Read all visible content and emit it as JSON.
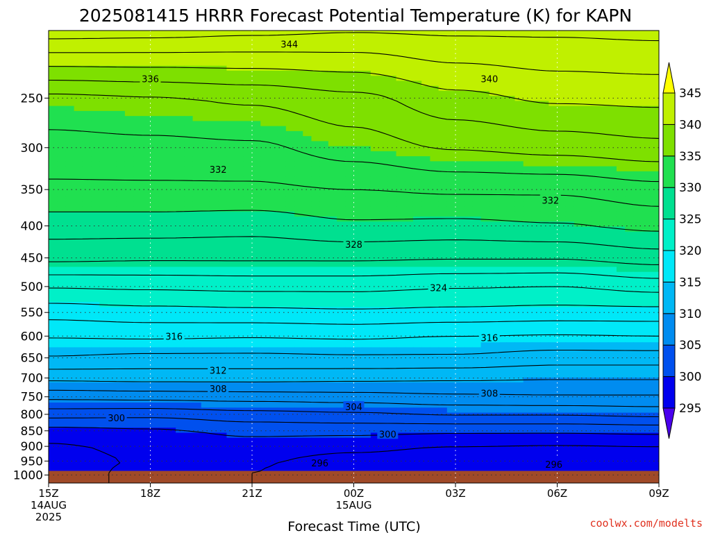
{
  "chart_data": {
    "type": "contour",
    "title": "2025081415 HRRR Forecast Potential Temperature (K) for KAPN",
    "xlabel": "Forecast Time (UTC)",
    "ylabel": "",
    "credit": "coolwx.com/modelts",
    "x_ticks": [
      {
        "value": 0,
        "line1": "15Z",
        "line2": "14AUG",
        "line3": "2025"
      },
      {
        "value": 3,
        "line1": "18Z",
        "line2": "",
        "line3": ""
      },
      {
        "value": 6,
        "line1": "21Z",
        "line2": "",
        "line3": ""
      },
      {
        "value": 9,
        "line1": "00Z",
        "line2": "15AUG",
        "line3": ""
      },
      {
        "value": 12,
        "line1": "03Z",
        "line2": "",
        "line3": ""
      },
      {
        "value": 15,
        "line1": "06Z",
        "line2": "",
        "line3": ""
      },
      {
        "value": 18,
        "line1": "09Z",
        "line2": "",
        "line3": ""
      }
    ],
    "xlim": [
      0,
      18
    ],
    "y_scale": "log",
    "y_inverted": true,
    "ylim": [
      1030,
      195
    ],
    "y_ticks": [
      250,
      300,
      350,
      400,
      450,
      500,
      550,
      600,
      650,
      700,
      750,
      800,
      850,
      900,
      950,
      1000
    ],
    "colorbar": {
      "levels": [
        295,
        300,
        305,
        310,
        315,
        320,
        325,
        330,
        335,
        340,
        345
      ],
      "colors": [
        "#4a00ee",
        "#0000ee",
        "#0050ee",
        "#008cf0",
        "#00b8f5",
        "#00e8f8",
        "#00f0c8",
        "#00e090",
        "#20e050",
        "#7ee000",
        "#c0f000",
        "#ffff00"
      ],
      "extend": "both"
    },
    "ground_color": "#a04a28",
    "surface_pressure": 985,
    "times": [
      0,
      3,
      6,
      9,
      12,
      15,
      18
    ],
    "theta_profiles": [
      {
        "t": 0,
        "p": [
          195,
          250,
          300,
          350,
          400,
          450,
          500,
          550,
          600,
          650,
          700,
          750,
          800,
          850,
          900,
          950,
          985
        ],
        "theta": [
          345.2,
          335.4,
          333.2,
          331.6,
          329.0,
          326.6,
          322.2,
          318.8,
          316.2,
          313.8,
          310.6,
          306.6,
          302.8,
          299.2,
          297.7,
          297.1,
          297.3
        ]
      },
      {
        "t": 3,
        "p": [
          195,
          250,
          300,
          350,
          400,
          450,
          500,
          550,
          600,
          650,
          700,
          750,
          800,
          850,
          900,
          950,
          985
        ],
        "theta": [
          345.0,
          335.8,
          333.4,
          331.6,
          329.0,
          326.4,
          322.4,
          319.2,
          316.4,
          313.4,
          310.8,
          306.8,
          302.6,
          299.6,
          298.6,
          298.2,
          298.4
        ]
      },
      {
        "t": 6,
        "p": [
          195,
          250,
          300,
          350,
          400,
          450,
          500,
          550,
          600,
          650,
          700,
          750,
          800,
          850,
          900,
          950,
          985
        ],
        "theta": [
          344.6,
          336.4,
          333.6,
          331.6,
          328.8,
          326.4,
          322.6,
          319.4,
          316.2,
          313.4,
          310.8,
          307.0,
          303.2,
          300.6,
          299.0,
          298.2,
          298.0
        ]
      },
      {
        "t": 9,
        "p": [
          195,
          250,
          300,
          350,
          400,
          450,
          500,
          550,
          600,
          650,
          700,
          750,
          800,
          850,
          900,
          950,
          985
        ],
        "theta": [
          344.2,
          337.4,
          335.0,
          332.0,
          329.6,
          326.4,
          322.6,
          319.6,
          316.4,
          313.6,
          310.6,
          307.2,
          303.6,
          300.6,
          298.6,
          297.2,
          296.8
        ]
      },
      {
        "t": 12,
        "p": [
          195,
          250,
          300,
          350,
          400,
          450,
          500,
          550,
          600,
          650,
          700,
          750,
          800,
          850,
          900,
          950,
          985
        ],
        "theta": [
          344.4,
          339.4,
          336.2,
          332.4,
          329.4,
          326.2,
          322.2,
          319.4,
          316.0,
          313.6,
          310.4,
          307.6,
          304.2,
          300.4,
          298.0,
          296.6,
          296.6
        ]
      },
      {
        "t": 15,
        "p": [
          195,
          250,
          300,
          350,
          400,
          450,
          500,
          550,
          600,
          650,
          700,
          750,
          800,
          850,
          900,
          950,
          985
        ],
        "theta": [
          344.4,
          340.4,
          336.8,
          332.4,
          329.8,
          326.2,
          322.0,
          319.2,
          315.8,
          313.0,
          310.2,
          307.8,
          304.2,
          300.4,
          297.8,
          296.4,
          296.6
        ]
      },
      {
        "t": 18,
        "p": [
          195,
          250,
          300,
          350,
          400,
          450,
          500,
          550,
          600,
          650,
          700,
          750,
          800,
          850,
          900,
          950,
          985
        ],
        "theta": [
          344.6,
          340.6,
          337.4,
          333.2,
          330.6,
          327.0,
          322.8,
          319.2,
          316.0,
          313.0,
          310.2,
          307.8,
          304.6,
          300.6,
          298.0,
          296.4,
          296.6
        ]
      }
    ],
    "contour_interval": 2,
    "contour_labels": [
      {
        "value": 344,
        "t": 7.1,
        "p": 205
      },
      {
        "value": 340,
        "t": 13.0,
        "p": 233
      },
      {
        "value": 336,
        "t": 3.0,
        "p": 233
      },
      {
        "value": 332,
        "t": 5.0,
        "p": 325
      },
      {
        "value": 332,
        "t": 14.8,
        "p": 364
      },
      {
        "value": 328,
        "t": 9.0,
        "p": 428
      },
      {
        "value": 324,
        "t": 11.5,
        "p": 502
      },
      {
        "value": 316,
        "t": 3.7,
        "p": 600
      },
      {
        "value": 316,
        "t": 13.0,
        "p": 603
      },
      {
        "value": 312,
        "t": 5.0,
        "p": 680
      },
      {
        "value": 308,
        "t": 5.0,
        "p": 728
      },
      {
        "value": 308,
        "t": 13.0,
        "p": 740
      },
      {
        "value": 304,
        "t": 9.0,
        "p": 778
      },
      {
        "value": 300,
        "t": 2.0,
        "p": 810
      },
      {
        "value": 300,
        "t": 10.0,
        "p": 860
      },
      {
        "value": 296,
        "t": 8.0,
        "p": 957
      },
      {
        "value": 296,
        "t": 14.9,
        "p": 962
      }
    ]
  }
}
